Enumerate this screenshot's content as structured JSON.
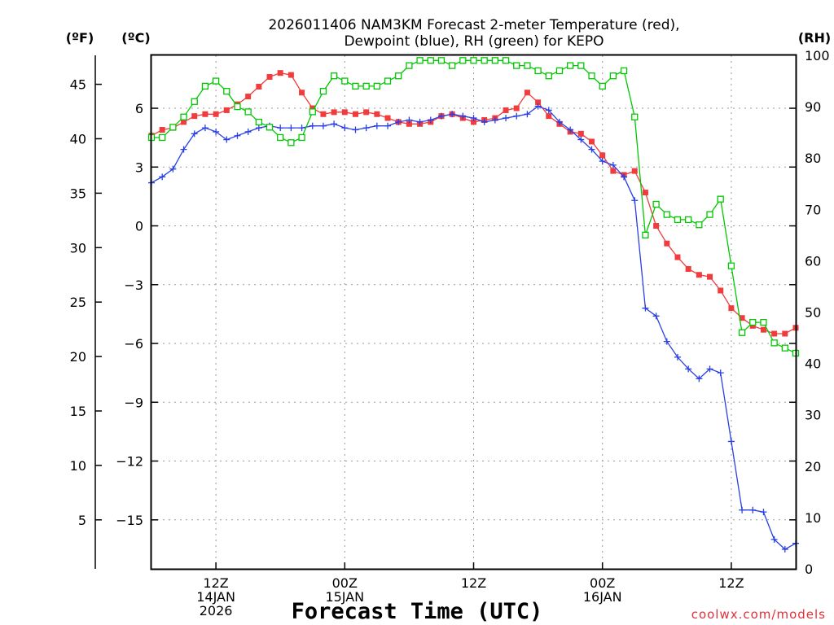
{
  "chart_data": {
    "type": "line",
    "title_lines": [
      "2026011406 NAM3KM Forecast 2-meter Temperature (red),",
      "Dewpoint (blue), RH (green) for KEPO"
    ],
    "xlabel": "Forecast Time (UTC)",
    "credit": "coolwx.com/models",
    "x_unit": "hours since 2026-01-14 06Z",
    "xlim": [
      0,
      60
    ],
    "x_ticks": [
      {
        "hour": 6,
        "lines": [
          "12Z",
          "14JAN",
          "2026"
        ]
      },
      {
        "hour": 18,
        "lines": [
          "00Z",
          "15JAN"
        ]
      },
      {
        "hour": 30,
        "lines": [
          "12Z"
        ]
      },
      {
        "hour": 42,
        "lines": [
          "00Z",
          "16JAN"
        ]
      },
      {
        "hour": 54,
        "lines": [
          "12Z"
        ]
      }
    ],
    "axes": {
      "celsius": {
        "label": "(ºC)",
        "ylim": [
          -17.5,
          8.7
        ],
        "ticks": [
          6,
          3,
          0,
          -3,
          -6,
          -9,
          -12,
          -15
        ]
      },
      "fahrenheit": {
        "label": "(ºF)",
        "ticks": [
          45,
          40,
          35,
          30,
          25,
          20,
          15,
          10,
          5
        ]
      },
      "rh": {
        "label": "(RH)",
        "ylim": [
          0,
          100
        ],
        "ticks": [
          100,
          90,
          80,
          70,
          60,
          50,
          40,
          30,
          20,
          10,
          0
        ]
      }
    },
    "grid": true,
    "series": [
      {
        "name": "Temperature",
        "unit": "°C",
        "axis": "celsius",
        "color": "#f03c3c",
        "marker": "filled-square",
        "x": [
          0,
          1,
          2,
          3,
          4,
          5,
          6,
          7,
          8,
          9,
          10,
          11,
          12,
          13,
          14,
          15,
          16,
          17,
          18,
          19,
          20,
          21,
          22,
          23,
          24,
          25,
          26,
          27,
          28,
          29,
          30,
          31,
          32,
          33,
          34,
          35,
          36,
          37,
          38,
          39,
          40,
          41,
          42,
          43,
          44,
          45,
          46,
          47,
          48,
          49,
          50,
          51,
          52,
          53,
          54,
          55,
          56,
          57,
          58,
          59,
          60
        ],
        "values": [
          4.6,
          4.9,
          5.0,
          5.3,
          5.6,
          5.7,
          5.7,
          5.9,
          6.2,
          6.6,
          7.1,
          7.6,
          7.8,
          7.7,
          6.8,
          6.0,
          5.7,
          5.8,
          5.8,
          5.7,
          5.8,
          5.7,
          5.5,
          5.3,
          5.2,
          5.2,
          5.3,
          5.6,
          5.7,
          5.5,
          5.3,
          5.4,
          5.5,
          5.9,
          6.0,
          6.8,
          6.3,
          5.6,
          5.2,
          4.8,
          4.7,
          4.3,
          3.6,
          2.8,
          2.6,
          2.8,
          1.7,
          0.0,
          -0.9,
          -1.6,
          -2.2,
          -2.5,
          -2.6,
          -3.3,
          -4.2,
          -4.7,
          -5.1,
          -5.3,
          -5.5,
          -5.5,
          -5.2
        ]
      },
      {
        "name": "Dewpoint",
        "unit": "°C",
        "axis": "celsius",
        "color": "#2840e6",
        "marker": "plus",
        "x": [
          0,
          1,
          2,
          3,
          4,
          5,
          6,
          7,
          8,
          9,
          10,
          11,
          12,
          13,
          14,
          15,
          16,
          17,
          18,
          19,
          20,
          21,
          22,
          23,
          24,
          25,
          26,
          27,
          28,
          29,
          30,
          31,
          32,
          33,
          34,
          35,
          36,
          37,
          38,
          39,
          40,
          41,
          42,
          43,
          44,
          45,
          46,
          47,
          48,
          49,
          50,
          51,
          52,
          53,
          54,
          55,
          56,
          57,
          58,
          59,
          60
        ],
        "values": [
          2.2,
          2.5,
          2.9,
          3.9,
          4.7,
          5.0,
          4.8,
          4.4,
          4.6,
          4.8,
          5.0,
          5.1,
          5.0,
          5.0,
          5.0,
          5.1,
          5.1,
          5.2,
          5.0,
          4.9,
          5.0,
          5.1,
          5.1,
          5.3,
          5.4,
          5.3,
          5.4,
          5.6,
          5.7,
          5.6,
          5.5,
          5.3,
          5.4,
          5.5,
          5.6,
          5.7,
          6.1,
          5.9,
          5.3,
          4.9,
          4.4,
          3.9,
          3.3,
          3.1,
          2.5,
          1.3,
          -4.2,
          -4.6,
          -5.9,
          -6.7,
          -7.3,
          -7.8,
          -7.3,
          -7.5,
          -11.0,
          -14.5,
          -14.5,
          -14.6,
          -16.0,
          -16.5,
          -16.2
        ]
      },
      {
        "name": "Relative Humidity",
        "unit": "%",
        "axis": "rh",
        "color": "#00c800",
        "marker": "open-square",
        "x": [
          0,
          1,
          2,
          3,
          4,
          5,
          6,
          7,
          8,
          9,
          10,
          11,
          12,
          13,
          14,
          15,
          16,
          17,
          18,
          19,
          20,
          21,
          22,
          23,
          24,
          25,
          26,
          27,
          28,
          29,
          30,
          31,
          32,
          33,
          34,
          35,
          36,
          37,
          38,
          39,
          40,
          41,
          42,
          43,
          44,
          45,
          46,
          47,
          48,
          49,
          50,
          51,
          52,
          53,
          54,
          55,
          56,
          57,
          58,
          59,
          60
        ],
        "values": [
          84,
          84,
          86,
          88,
          91,
          94,
          95,
          93,
          90,
          89,
          87,
          86,
          84,
          83,
          84,
          89,
          93,
          96,
          95,
          94,
          94,
          94,
          95,
          96,
          98,
          99,
          99,
          99,
          98,
          99,
          99,
          99,
          99,
          99,
          98,
          98,
          97,
          96,
          97,
          98,
          98,
          96,
          94,
          96,
          97,
          88,
          65,
          71,
          69,
          68,
          68,
          67,
          69,
          72,
          59,
          46,
          48,
          48,
          44,
          43,
          42
        ]
      }
    ]
  }
}
